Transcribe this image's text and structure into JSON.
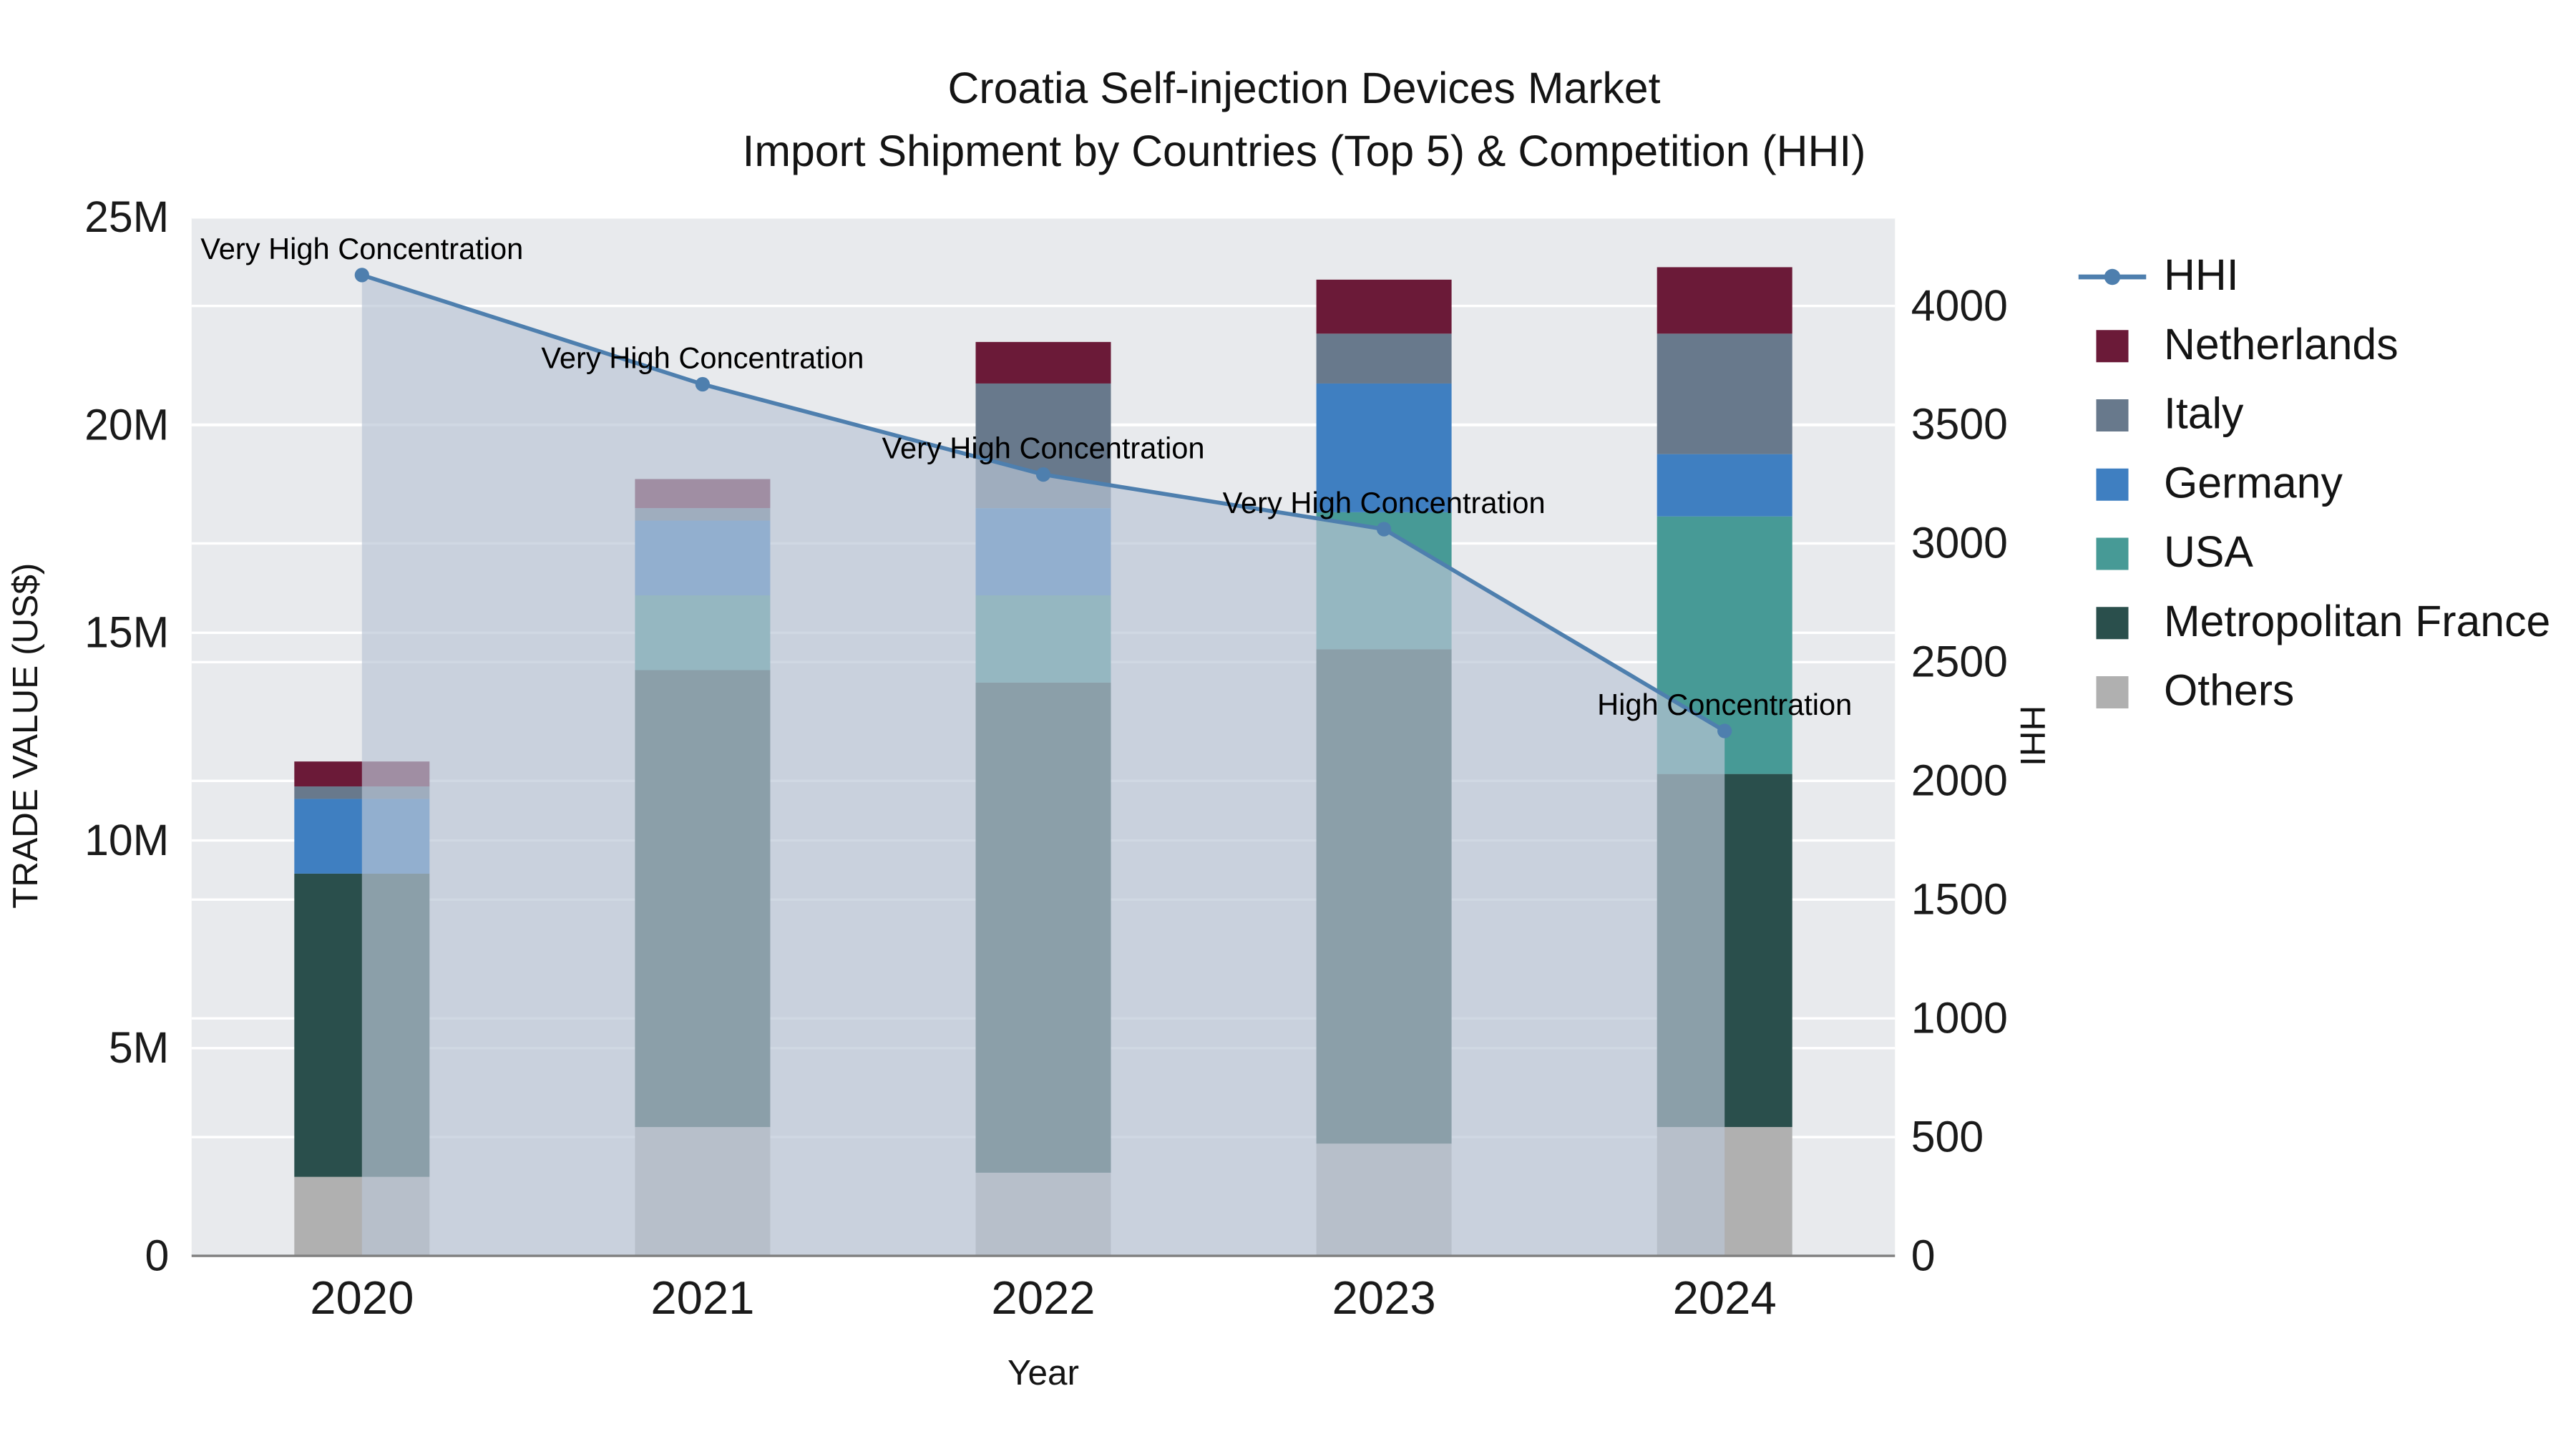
{
  "title": {
    "line1": "Croatia Self-injection Devices Market",
    "line2": "Import Shipment by Countries (Top 5) & Competition (HHI)"
  },
  "chart_data": {
    "type": "combo",
    "subtypes": [
      "stacked-bar",
      "line-with-area"
    ],
    "categories": [
      "2020",
      "2021",
      "2022",
      "2023",
      "2024"
    ],
    "bar_unit": "M US$",
    "bar_series": [
      {
        "name": "Others",
        "color": "#b0b0b0",
        "values": [
          1.9,
          3.1,
          2.0,
          2.7,
          3.1
        ]
      },
      {
        "name": "Metropolitan France",
        "color": "#2a4f4c",
        "values": [
          7.3,
          11.0,
          11.8,
          11.9,
          8.5
        ]
      },
      {
        "name": "USA",
        "color": "#479a96",
        "values": [
          0.0,
          1.8,
          2.1,
          3.3,
          6.2
        ]
      },
      {
        "name": "Germany",
        "color": "#3f7fc1",
        "values": [
          1.8,
          1.8,
          2.1,
          3.1,
          1.5
        ]
      },
      {
        "name": "Italy",
        "color": "#68798c",
        "values": [
          0.3,
          0.3,
          3.0,
          1.2,
          2.9
        ]
      },
      {
        "name": "Netherlands",
        "color": "#6b1a38",
        "values": [
          0.6,
          0.7,
          1.0,
          1.3,
          1.6
        ]
      }
    ],
    "line_series": {
      "name": "HHI",
      "color": "#4e7fae",
      "area_fill": "#b9c5d6",
      "area_opacity": 0.68,
      "values": [
        4130,
        3670,
        3290,
        3060,
        2210
      ]
    },
    "annotations": [
      {
        "year": "2020",
        "text": "Very High Concentration"
      },
      {
        "year": "2021",
        "text": "Very High Concentration"
      },
      {
        "year": "2022",
        "text": "Very High Concentration"
      },
      {
        "year": "2023",
        "text": "Very High Concentration"
      },
      {
        "year": "2024",
        "text": "High Concentration"
      }
    ],
    "left_axis": {
      "label": "TRADE VALUE (US$)",
      "tick_labels": [
        "0",
        "5M",
        "10M",
        "15M",
        "20M",
        "25M"
      ],
      "tick_values": [
        0,
        5,
        10,
        15,
        20,
        25
      ],
      "range": [
        0,
        25
      ]
    },
    "right_axis": {
      "label": "HHI",
      "tick_values": [
        0,
        500,
        1000,
        1500,
        2000,
        2500,
        3000,
        3500,
        4000
      ],
      "range": [
        0,
        4000
      ]
    },
    "x_axis": {
      "label": "Year"
    },
    "legend": [
      "HHI",
      "Netherlands",
      "Italy",
      "Germany",
      "USA",
      "Metropolitan France",
      "Others"
    ],
    "style": {
      "plot_background": "#e8eaed",
      "gridline_color": "#ffffff",
      "axis_line_color": "#7f7f7f",
      "text_color": "#1a1a1a"
    }
  }
}
